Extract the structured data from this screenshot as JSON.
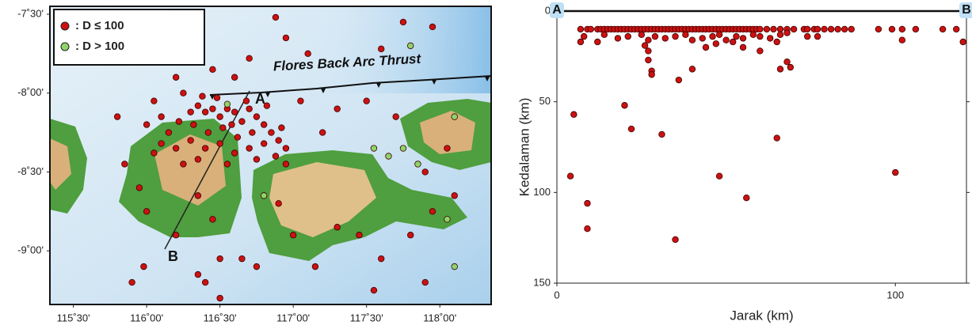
{
  "chart_data": [
    {
      "type": "scatter",
      "legend": "upper left",
      "xlim": [
        115.34,
        118.35
      ],
      "ylim": [
        -9.34,
        -7.45
      ],
      "xticks": [
        {
          "value": 115.5,
          "label": "115˚30'"
        },
        {
          "value": 116,
          "label": "116˚00'"
        },
        {
          "value": 116.5,
          "label": "116˚30'"
        },
        {
          "value": 117,
          "label": "117˚00'"
        },
        {
          "value": 117.5,
          "label": "117˚30'"
        },
        {
          "value": 118,
          "label": "118˚00'"
        }
      ],
      "yticks": [
        {
          "value": -7.5,
          "label": "-7˚30'"
        },
        {
          "value": -8,
          "label": "-8˚00'"
        },
        {
          "value": -8.5,
          "label": "-8˚30'"
        },
        {
          "value": -9,
          "label": "-9˚00'"
        }
      ],
      "annotations": [
        "Flores Back Arc Thrust",
        "A",
        "B"
      ],
      "series": [
        {
          "name": ": D ≤ 100",
          "color": "#cc1111",
          "x": [
            116.88,
            116.95,
            117.75,
            117.95,
            117.6,
            116.7,
            117.1,
            116.45,
            116.2,
            116.6,
            115.8,
            116.05,
            116.25,
            116.35,
            116.4,
            116.45,
            116.5,
            116.55,
            116.6,
            116.65,
            116.7,
            116.75,
            116.8,
            116.85,
            116.9,
            116.95,
            116.92,
            116.72,
            116.62,
            116.52,
            116.42,
            116.32,
            116.22,
            116.15,
            116.1,
            116.2,
            116.3,
            116.4,
            116.5,
            116.6,
            116.7,
            116.8,
            116.88,
            116.95,
            116.75,
            116.55,
            116.35,
            116.25,
            116.05,
            116.0,
            116.1,
            116.3,
            116.58,
            116.68,
            116.48,
            116.38,
            116.82,
            115.95,
            116.0,
            116.35,
            116.45,
            116.2,
            115.98,
            116.5,
            116.35,
            116.4,
            116.75,
            116.65,
            116.9,
            117.0,
            117.3,
            117.45,
            117.6,
            117.8,
            117.95,
            118.1,
            117.9,
            118.05,
            117.7,
            117.5,
            117.3,
            117.05,
            117.2,
            117.9,
            117.55,
            116.5,
            117.15,
            115.85,
            115.9
          ],
          "values": [
            -7.52,
            -7.65,
            -7.55,
            -7.58,
            -7.72,
            -7.78,
            -7.75,
            -7.85,
            -7.9,
            -7.9,
            -8.15,
            -8.05,
            -8.0,
            -8.08,
            -8.12,
            -8.1,
            -8.15,
            -8.1,
            -8.12,
            -8.18,
            -8.1,
            -8.15,
            -8.2,
            -8.25,
            -8.3,
            -8.35,
            -8.22,
            -8.25,
            -8.28,
            -8.22,
            -8.25,
            -8.2,
            -8.18,
            -8.25,
            -8.32,
            -8.35,
            -8.3,
            -8.35,
            -8.32,
            -8.38,
            -8.35,
            -8.32,
            -8.4,
            -8.45,
            -8.42,
            -8.45,
            -8.42,
            -8.45,
            -8.38,
            -8.2,
            -8.15,
            -8.12,
            -8.2,
            -8.05,
            -8.03,
            -8.02,
            -8.08,
            -8.6,
            -8.75,
            -8.65,
            -8.8,
            -8.9,
            -9.1,
            -9.05,
            -9.15,
            -9.2,
            -9.1,
            -9.05,
            -8.7,
            -8.9,
            -8.85,
            -8.9,
            -9.05,
            -8.9,
            -8.75,
            -8.65,
            -8.5,
            -8.35,
            -8.15,
            -8.05,
            -8.1,
            -8.05,
            -8.25,
            -9.2,
            -9.25,
            -9.3,
            -9.1,
            -8.45,
            -9.2
          ]
        },
        {
          "name": ": D > 100",
          "color": "#8fd36a",
          "x": [
            116.55,
            117.8,
            117.65,
            117.85,
            118.1,
            118.05,
            118.1,
            117.55,
            116.8,
            117.75
          ],
          "values": [
            -8.07,
            -7.7,
            -8.4,
            -8.45,
            -8.15,
            -8.8,
            -9.1,
            -8.35,
            -8.65,
            -8.35
          ]
        }
      ]
    },
    {
      "type": "scatter",
      "xlabel": "Jarak (km)",
      "ylabel": "Kedalaman (km)",
      "xlim": [
        0,
        121
      ],
      "ylim": [
        150,
        0
      ],
      "xticks": [
        0,
        100
      ],
      "yticks": [
        0,
        50,
        100,
        150
      ],
      "annotations": [
        "A",
        "B"
      ],
      "series": [
        {
          "color": "#cc1111",
          "x": [
            7,
            9,
            10,
            12,
            13,
            14,
            15,
            16,
            17,
            18,
            19,
            20,
            21,
            22,
            23,
            24,
            25,
            26,
            27,
            28,
            29,
            30,
            31,
            32,
            33,
            34,
            35,
            36,
            37,
            38,
            39,
            40,
            41,
            42,
            43,
            44,
            45,
            46,
            47,
            48,
            49,
            50,
            51,
            52,
            53,
            54,
            55,
            56,
            57,
            58,
            59,
            60,
            62,
            64,
            66,
            68,
            70,
            73,
            74,
            76,
            77,
            79,
            81,
            83,
            85,
            87,
            95,
            99,
            102,
            106,
            114,
            118,
            8,
            14,
            18,
            21,
            25,
            27,
            29,
            32,
            35,
            38,
            40,
            43,
            46,
            48,
            50,
            53,
            55,
            58,
            60,
            63,
            66,
            68,
            77,
            7,
            12,
            26,
            27,
            27,
            28,
            28,
            36,
            40,
            44,
            47,
            52,
            55,
            60,
            65,
            66,
            68,
            69,
            74,
            102,
            120,
            5,
            20,
            22,
            31,
            4,
            9,
            9,
            35,
            48,
            56,
            65,
            100
          ],
          "values": [
            10,
            10,
            10,
            10,
            10,
            10,
            10,
            10,
            10,
            10,
            10,
            10,
            10,
            10,
            10,
            10,
            10,
            10,
            10,
            10,
            10,
            10,
            10,
            10,
            10,
            10,
            10,
            10,
            10,
            10,
            10,
            10,
            10,
            10,
            10,
            10,
            10,
            10,
            10,
            10,
            10,
            10,
            10,
            10,
            10,
            10,
            10,
            10,
            10,
            10,
            10,
            10,
            10,
            10,
            10,
            10,
            10,
            10,
            10,
            10,
            10,
            10,
            10,
            10,
            10,
            10,
            10,
            10,
            10,
            10,
            10,
            10,
            14,
            13,
            15,
            14,
            13,
            16,
            14,
            15,
            14,
            13,
            16,
            15,
            14,
            13,
            16,
            14,
            15,
            13,
            14,
            15,
            13,
            12,
            14,
            17,
            17,
            19,
            22,
            27,
            33,
            35,
            38,
            32,
            20,
            18,
            17,
            20,
            22,
            17,
            32,
            28,
            31,
            14,
            16,
            17,
            57,
            52,
            65,
            68,
            91,
            106,
            120,
            126,
            91,
            103,
            70,
            89
          ]
        }
      ]
    }
  ]
}
